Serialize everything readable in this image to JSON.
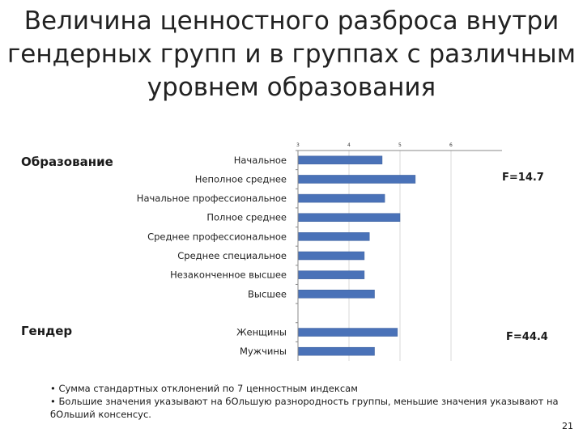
{
  "title_lines": [
    "Величина ценностного разброса внутри",
    "гендерных групп и в группах с различным",
    "уровнем образования"
  ],
  "groups": {
    "education": {
      "label": "Образование",
      "stat": "F=14.7"
    },
    "gender": {
      "label": "Гендер",
      "stat": "F=44.4"
    }
  },
  "notes": [
    "• Сумма стандартных отклонений по 7 ценностным индексам",
    "• Большие значения указывают на бОльшую разнородность группы, меньшие значения указывают на",
    "бОльший консенсус."
  ],
  "page_number": "21",
  "colors": {
    "bar": "#4a72b8",
    "bar_edge": "#3b5f9c",
    "axis": "#888888",
    "grid": "#d9d9d9"
  },
  "chart_data": {
    "type": "bar",
    "orientation": "horizontal",
    "xlim": [
      3,
      7
    ],
    "xticks": [
      "3",
      "4",
      "5",
      "6"
    ],
    "grid": true,
    "categories": [
      "Начальное",
      "Неполное среднее",
      "Начальное профессиональное",
      "Полное среднее",
      "Среднее профессиональное",
      "Среднее специальное",
      "Незаконченное высшее",
      "Высшее",
      "",
      "Женщины",
      "Мужчины"
    ],
    "values": [
      4.65,
      5.3,
      4.7,
      5.0,
      4.4,
      4.3,
      4.3,
      4.5,
      null,
      4.95,
      4.5
    ]
  }
}
